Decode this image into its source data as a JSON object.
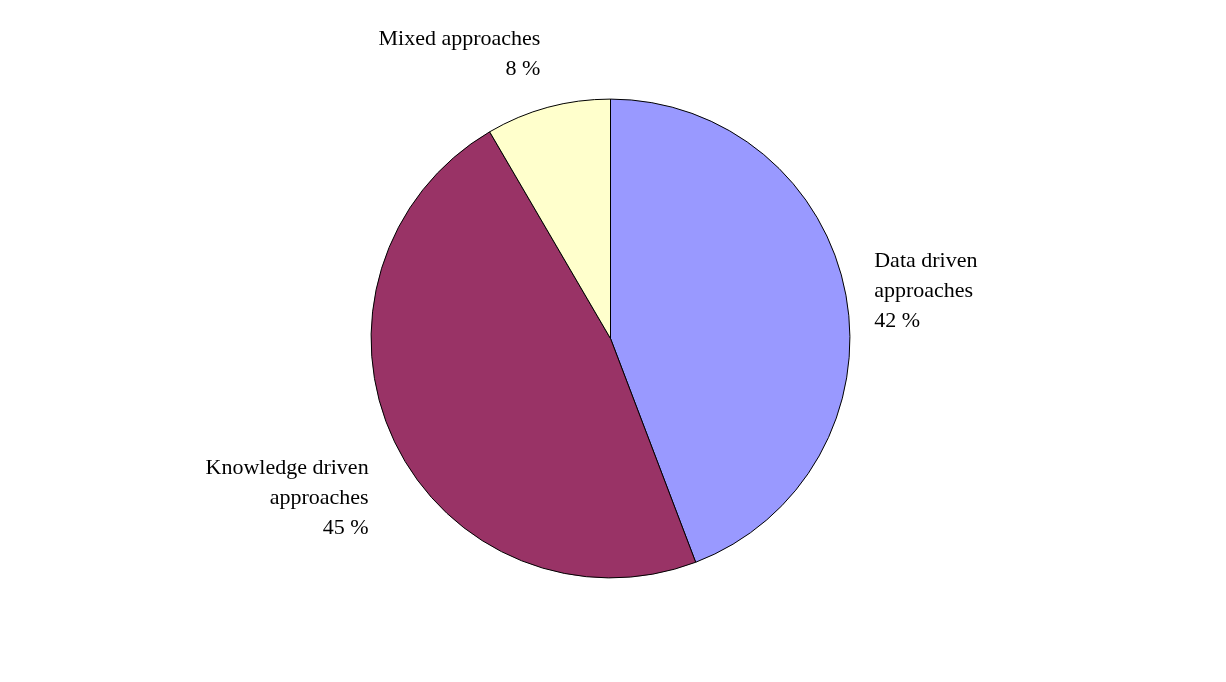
{
  "chart_data": {
    "type": "pie",
    "categories": [
      "Data driven approaches",
      "Knowledge driven approaches",
      "Mixed approaches"
    ],
    "values": [
      42,
      45,
      8
    ],
    "colors": [
      "#9999ff",
      "#993366",
      "#ffffcc"
    ],
    "value_labels": [
      "42 %",
      "45 %",
      "8 %"
    ]
  }
}
